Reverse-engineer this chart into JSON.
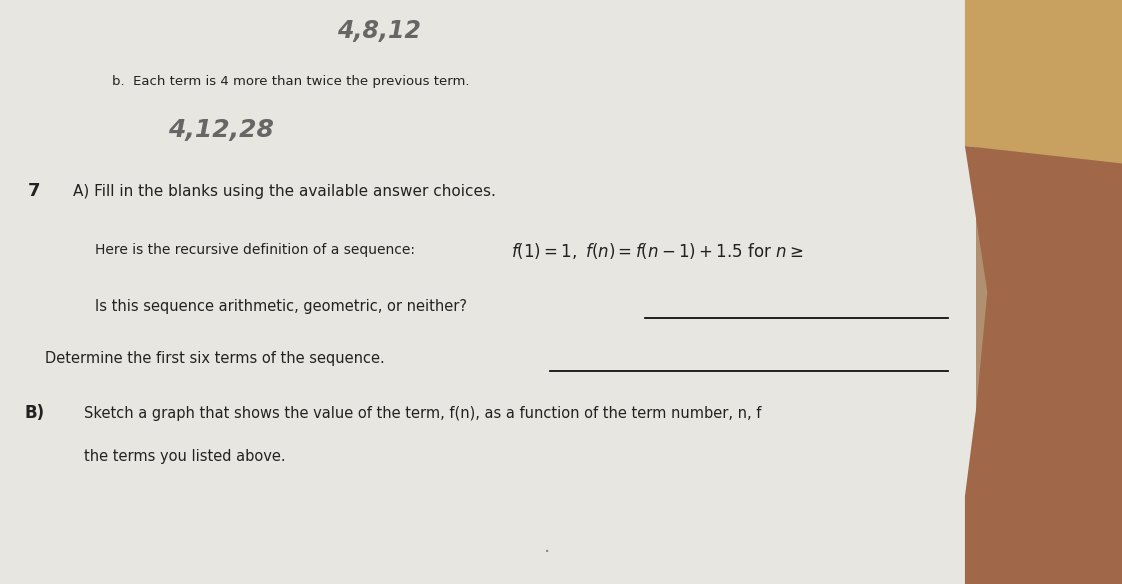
{
  "bg_color_left": "#c8b99a",
  "bg_color_right": "#b8a888",
  "paper_color": "#e8e6e0",
  "paper_shadow": "#d0ccc4",
  "handwritten_top": "4,8,12",
  "label_b": "b.  Each term is 4 more than twice the previous term.",
  "handwritten_b": "4,12,28",
  "problem_7a": "7 A) Fill in the blanks using the available answer choices.",
  "recursive_label": "Here is the recursive definition of a sequence:",
  "arithmetic_q": "Is this sequence arithmetic, geometric, or neither?",
  "determine_q": "Determine the first six terms of the sequence.",
  "part_b_line1": "B)  Sketch a graph that shows the value of the term, f(n), as a function of the term number, n, f",
  "part_b_line2": "the terms you listed above.",
  "hand_color": "#7a5038",
  "finger_color": "#a06848",
  "text_dark": "#222222",
  "text_medium": "#444444",
  "handwrite_color": "#666666",
  "line_color": "#111111"
}
